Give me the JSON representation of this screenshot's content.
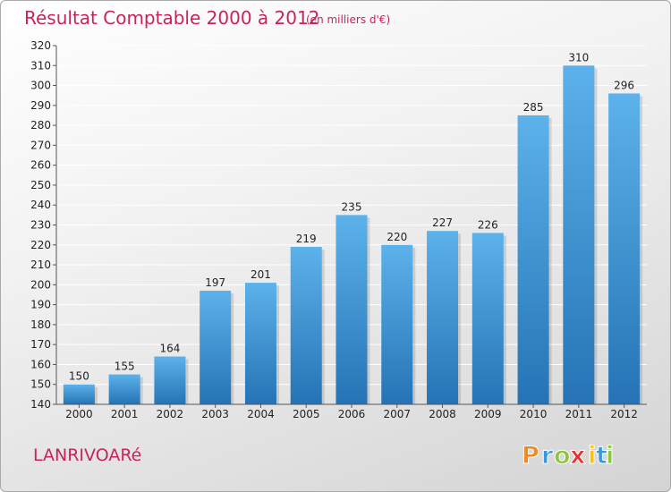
{
  "chart_data": {
    "type": "bar",
    "title": "Résultat Comptable 2000 à 2012",
    "subtitle": "(en milliers d'€)",
    "categories": [
      "2000",
      "2001",
      "2002",
      "2003",
      "2004",
      "2005",
      "2006",
      "2007",
      "2008",
      "2009",
      "2010",
      "2011",
      "2012"
    ],
    "values": [
      150,
      155,
      164,
      197,
      201,
      219,
      235,
      220,
      227,
      226,
      285,
      310,
      296
    ],
    "ylim": [
      140,
      320
    ],
    "ytick_step": 10,
    "grid": true,
    "xlabel": "",
    "ylabel": ""
  },
  "commune_name": "LANRIVOARé",
  "logo": {
    "letters": [
      "P",
      "r",
      "o",
      "x",
      "i",
      "t",
      "i"
    ],
    "colors": [
      "#f08a24",
      "#3a9ad9",
      "#8cc63f",
      "#e8312f",
      "#f6c21b",
      "#3a9ad9",
      "#8cc63f"
    ]
  },
  "colors": {
    "bar_top": "#5cb2ea",
    "bar_bottom": "#2573b5",
    "accent": "#c8245a"
  }
}
